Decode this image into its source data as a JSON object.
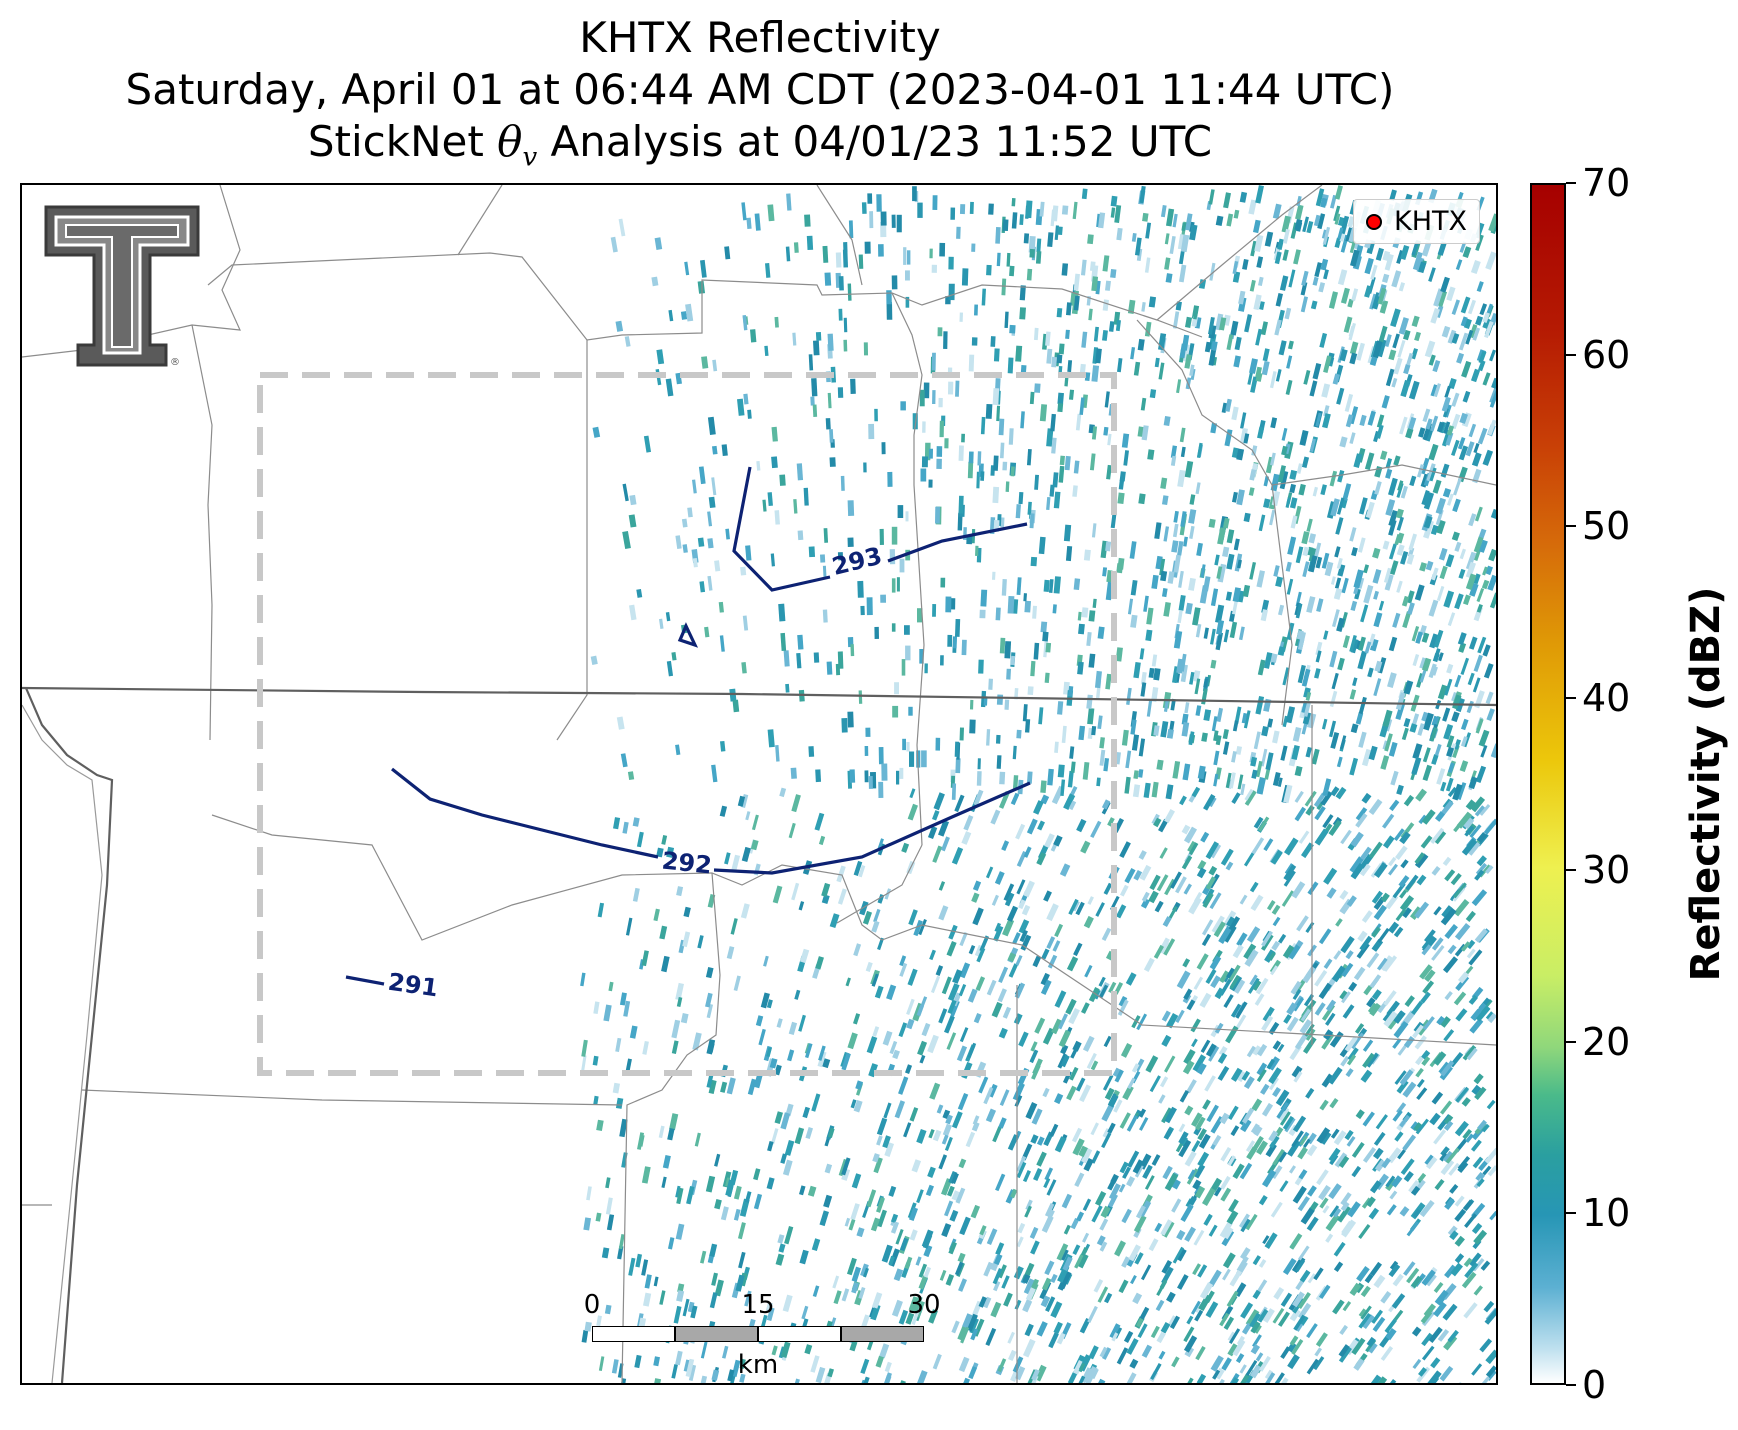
{
  "title": {
    "line1": "KHTX Reflectivity",
    "line2": "Saturday, April 01 at 06:44 AM CDT (2023-04-01 11:44 UTC)",
    "line3_prefix": "StickNet ",
    "line3_symbol": "θ",
    "line3_subscript": "v",
    "line3_suffix": " Analysis at 04/01/23 11:52 UTC"
  },
  "legend": {
    "label": "KHTX",
    "marker_color": "#ff0000"
  },
  "contours": [
    {
      "value": "293",
      "color": "#0d2273"
    },
    {
      "value": "292",
      "color": "#0d2273"
    },
    {
      "value": "291",
      "color": "#0d2273"
    }
  ],
  "scalebar": {
    "ticks": [
      "0",
      "15",
      "30"
    ],
    "unit": "km"
  },
  "colorbar": {
    "label": "Reflectivity (dBZ)",
    "ticks": [
      "0",
      "10",
      "20",
      "30",
      "40",
      "50",
      "60",
      "70"
    ],
    "min": 0,
    "max": 70
  },
  "logo": "texas-tech-double-t-logo",
  "colors": {
    "contour": "#0d2273",
    "dashed_box": "#c8c8c8",
    "county_lines": "#888888",
    "state_line": "#555555",
    "echo_primary": "#2a96b0",
    "echo_light": "#9fcfe3"
  }
}
